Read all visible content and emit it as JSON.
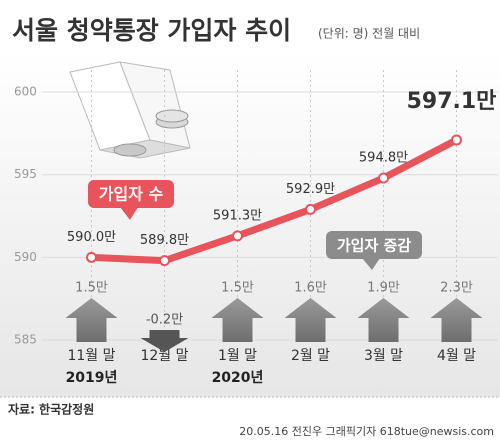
{
  "chart_data": {
    "type": "line",
    "title": "서울 청약통장 가입자 추이",
    "subtitle": "(단위: 명) 전월 대비",
    "categories": [
      "11월 말",
      "12월 말",
      "1월 말",
      "2월 말",
      "3월 말",
      "4월 말"
    ],
    "year_labels": [
      "2019년",
      null,
      "2020년",
      null,
      null,
      null
    ],
    "series": [
      {
        "name": "가입자 수",
        "color": "#e8535c",
        "values": [
          590.0,
          589.8,
          591.3,
          592.9,
          594.8,
          597.1
        ],
        "value_labels": [
          "590.0만",
          "589.8만",
          "591.3만",
          "592.9만",
          "594.8만",
          "597.1만"
        ]
      },
      {
        "name": "가입자 증감",
        "color": "#8c8c8c",
        "values": [
          1.5,
          -0.2,
          1.5,
          1.6,
          1.9,
          2.3
        ],
        "value_labels": [
          "1.5만",
          "-0.2만",
          "1.5만",
          "1.6만",
          "1.9만",
          "2.3만"
        ]
      }
    ],
    "ylim": [
      585,
      602
    ],
    "yticks": [
      585,
      590,
      595,
      600
    ],
    "grid": true,
    "source": "자료: 한국감정원",
    "credit": "20.05.16 전진우 그래픽기자 618tue@newsis.com"
  }
}
